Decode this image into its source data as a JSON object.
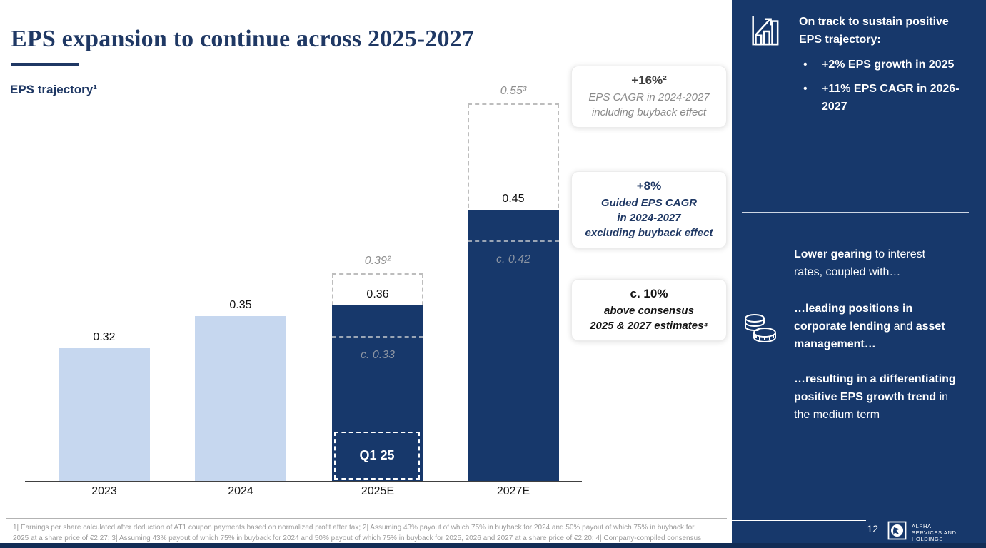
{
  "slide": {
    "title": "EPS expansion to continue across 2025-2027",
    "chart_label": "EPS trajectory¹"
  },
  "chart_data": {
    "type": "bar",
    "title": "EPS trajectory",
    "xlabel": "",
    "ylabel": "EPS",
    "categories": [
      "2023",
      "2024",
      "2025E",
      "2027E"
    ],
    "ylim": [
      0.195,
      0.58
    ],
    "grid": false,
    "legend": "none",
    "bars": [
      {
        "category": "2023",
        "value": 0.32,
        "value_label": "0.32",
        "style": "light"
      },
      {
        "category": "2024",
        "value": 0.35,
        "value_label": "0.35",
        "style": "light"
      },
      {
        "category": "2025E",
        "value": 0.36,
        "value_label": "0.36",
        "style": "dark",
        "projected_value": 0.39,
        "projected_label": "0.39²",
        "interim_value": 0.33,
        "interim_label": "c. 0.33",
        "segment_label": "Q1 25"
      },
      {
        "category": "2027E",
        "value": 0.45,
        "value_label": "0.45",
        "style": "dark",
        "projected_value": 0.55,
        "projected_label": "0.55³",
        "interim_value": 0.42,
        "interim_label": "c. 0.42"
      }
    ]
  },
  "callouts": [
    {
      "headline": "+16%²",
      "lines": [
        "EPS CAGR in 2024-2027",
        "including buyback effect"
      ]
    },
    {
      "headline": "+8%",
      "lines": [
        "Guided EPS CAGR",
        "in 2024-2027",
        "excluding buyback effect"
      ]
    },
    {
      "headline": "c. 10%",
      "lines": [
        "above consensus",
        "2025 & 2027 estimates⁴"
      ]
    }
  ],
  "sidebar": {
    "heading": "On track to sustain positive EPS trajectory:",
    "bullets": [
      "+2% EPS growth in 2025",
      "+11% EPS CAGR in 2026-2027"
    ],
    "icons": [
      "growth-chart-icon",
      "coins-icon"
    ],
    "paragraphs": [
      {
        "segments": [
          {
            "text": "Lower gearing",
            "bold": true
          },
          {
            "text": " to interest rates, coupled with…",
            "bold": false
          }
        ]
      },
      {
        "segments": [
          {
            "text": "…leading positions in corporate lending",
            "bold": true
          },
          {
            "text": " and ",
            "bold": false
          },
          {
            "text": "asset management…",
            "bold": true
          }
        ]
      },
      {
        "segments": [
          {
            "text": "…resulting in a differentiating positive EPS growth trend",
            "bold": true
          },
          {
            "text": " in the medium term",
            "bold": false
          }
        ]
      }
    ]
  },
  "footer": {
    "footnote_line1": "1| Earnings per share calculated after deduction of AT1 coupon payments based on normalized profit after tax; 2| Assuming 43% payout of which 75% in buyback for 2024 and 50% payout of which 75% in buyback for",
    "footnote_line2": "2025 at a share price of €2.27; 3| Assuming 43% payout of which 75% in buyback for 2024 and 50% payout of which 75% in buyback for 2025, 2026 and 2027 at a share price of €2.20; 4| Company-compiled consensus",
    "page_number": "12",
    "logo_line1": "ALPHA",
    "logo_line2": "SERVICES AND HOLDINGS"
  },
  "colors": {
    "navy": "#17386B",
    "title_navy": "#1F3864",
    "light_bar": "#C6D7EF",
    "gray_text": "#8f8f8f",
    "footnote_gray": "#9a9a9a",
    "bottom_strip": "#122C55"
  }
}
